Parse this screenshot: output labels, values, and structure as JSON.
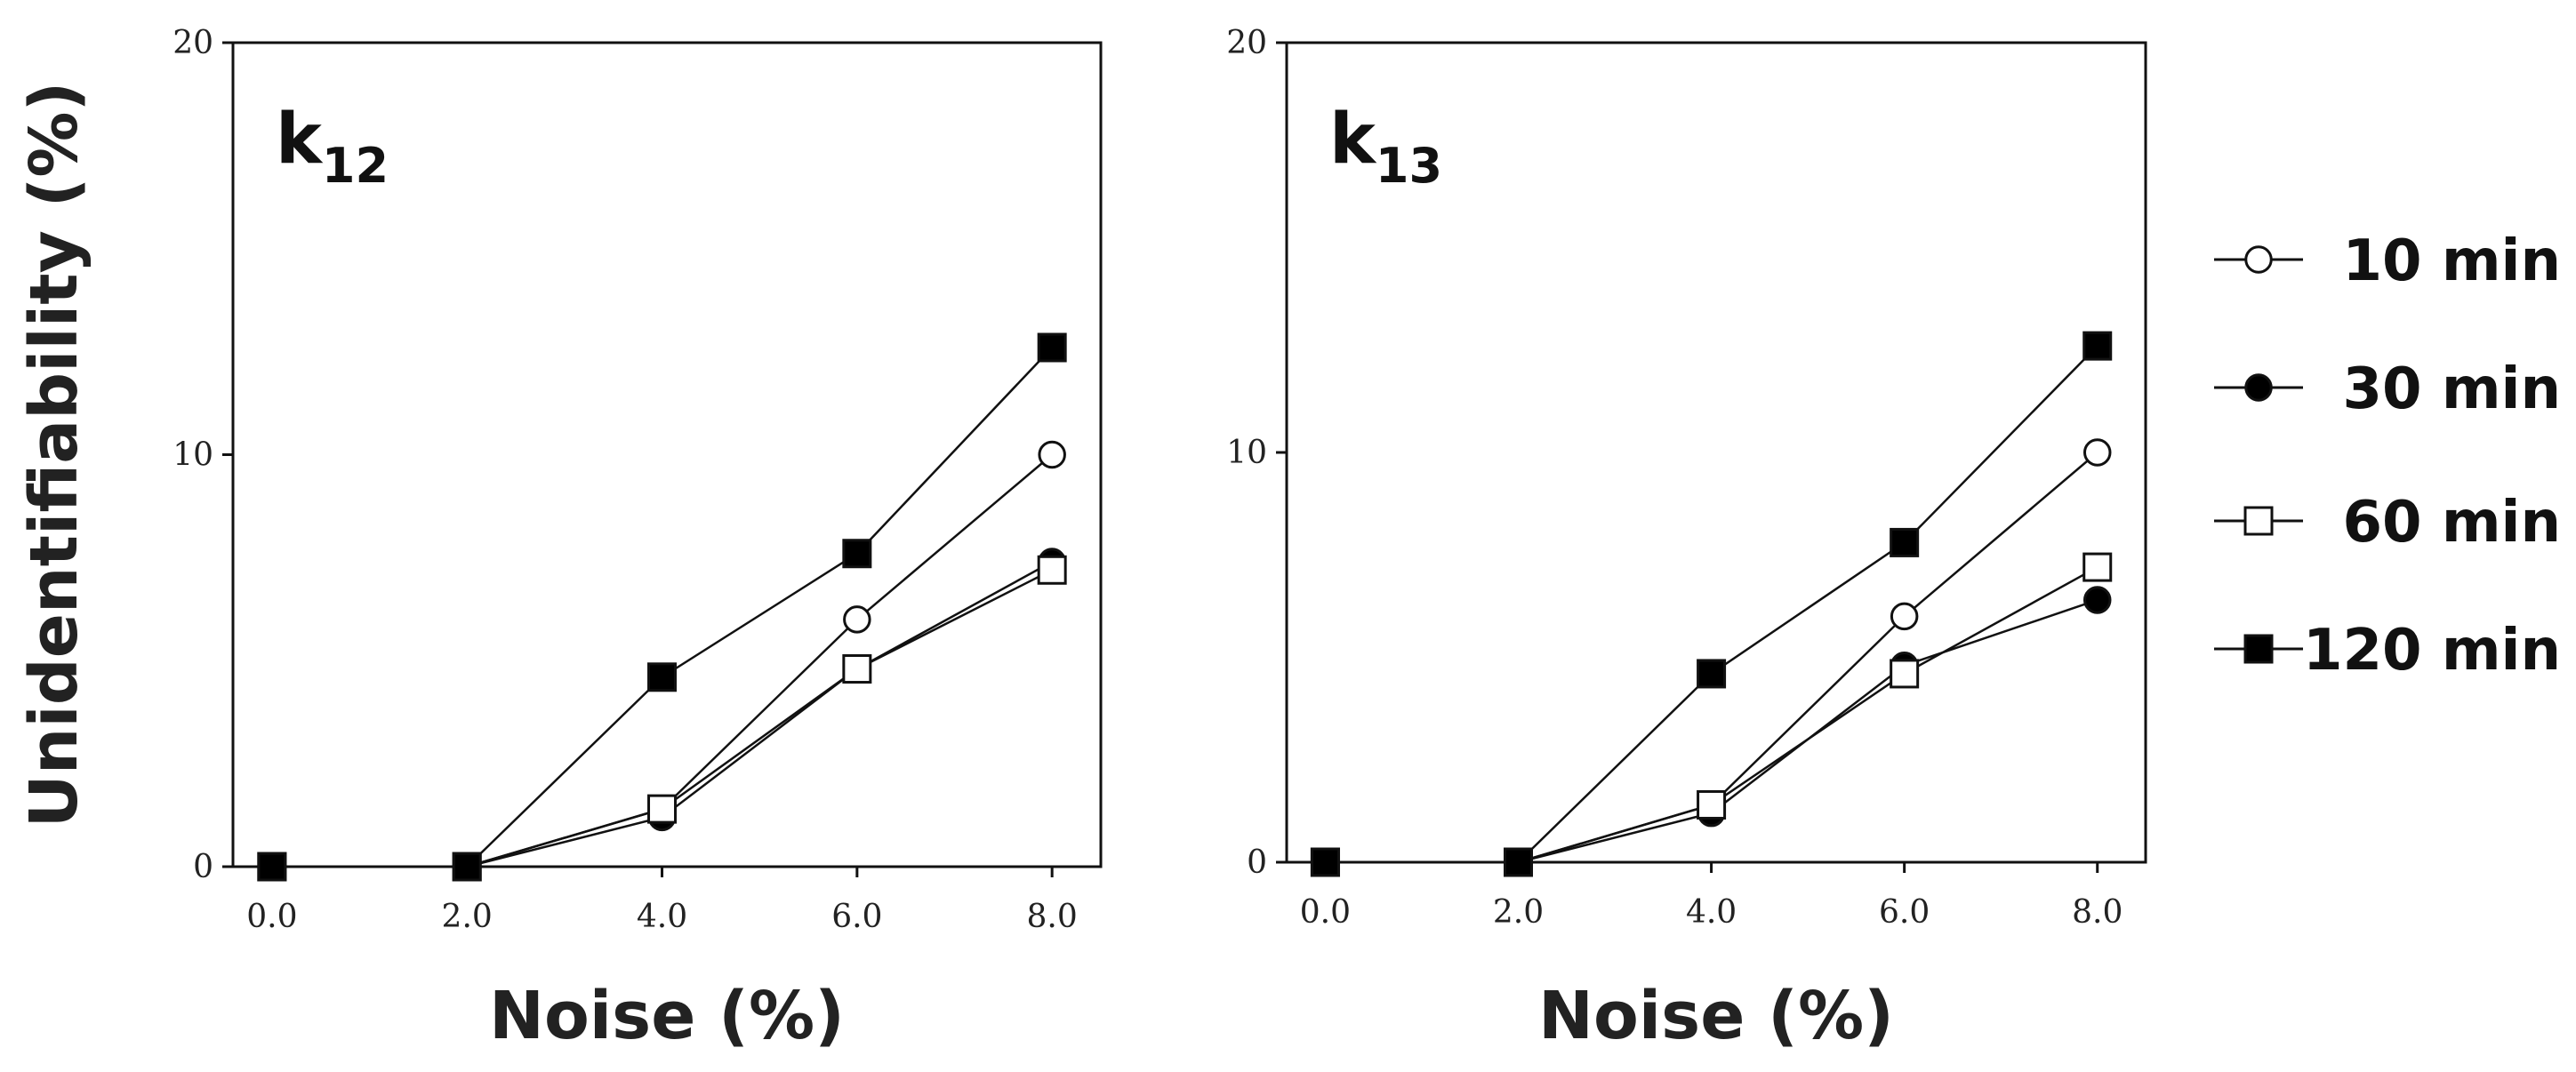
{
  "chart_data": [
    {
      "type": "line",
      "panel_label": {
        "main": "k",
        "sub": "12"
      },
      "xlabel": "Noise (%)",
      "ylabel": "Unidentifiability (%)",
      "x_tick_labels": [
        "0.0",
        "2.0",
        "4.0",
        "6.0",
        "8.0"
      ],
      "y_tick_labels": [
        "0",
        "10",
        "20"
      ],
      "x": [
        0.0,
        2.0,
        4.0,
        6.0,
        8.0
      ],
      "xlim": [
        -0.4,
        8.5
      ],
      "ylim": [
        0,
        20
      ],
      "series": [
        {
          "name": "10 min",
          "marker": "open-circle",
          "values": [
            0,
            0,
            1.4,
            6.0,
            10.0
          ]
        },
        {
          "name": "30 min",
          "marker": "filled-circle",
          "values": [
            0,
            0,
            1.2,
            4.8,
            7.4
          ]
        },
        {
          "name": "60 min",
          "marker": "open-square",
          "values": [
            0,
            0,
            1.4,
            4.8,
            7.2
          ]
        },
        {
          "name": "120 min",
          "marker": "filled-square",
          "values": [
            0,
            0,
            4.6,
            7.6,
            12.6
          ]
        }
      ]
    },
    {
      "type": "line",
      "panel_label": {
        "main": "k",
        "sub": "13"
      },
      "xlabel": "Noise (%)",
      "ylabel": "",
      "x_tick_labels": [
        "0.0",
        "2.0",
        "4.0",
        "6.0",
        "8.0"
      ],
      "y_tick_labels": [
        "0",
        "10",
        "20"
      ],
      "x": [
        0.0,
        2.0,
        4.0,
        6.0,
        8.0
      ],
      "xlim": [
        -0.4,
        8.5
      ],
      "ylim": [
        0,
        20
      ],
      "series": [
        {
          "name": "10 min",
          "marker": "open-circle",
          "values": [
            0,
            0,
            1.4,
            6.0,
            10.0
          ]
        },
        {
          "name": "30 min",
          "marker": "filled-circle",
          "values": [
            0,
            0,
            1.2,
            4.8,
            6.4
          ]
        },
        {
          "name": "60 min",
          "marker": "open-square",
          "values": [
            0,
            0,
            1.4,
            4.6,
            7.2
          ]
        },
        {
          "name": "120 min",
          "marker": "filled-square",
          "values": [
            0,
            0,
            4.6,
            7.8,
            12.6
          ]
        }
      ]
    }
  ],
  "legend": {
    "placement": "right",
    "entries": [
      {
        "label": "10 min",
        "marker": "open-circle"
      },
      {
        "label": "30 min",
        "marker": "filled-circle"
      },
      {
        "label": "60 min",
        "marker": "open-square"
      },
      {
        "label": "120 min",
        "marker": "filled-square"
      }
    ]
  },
  "colors": {
    "line": "#111111",
    "fill": "#000000",
    "background": "#ffffff"
  }
}
